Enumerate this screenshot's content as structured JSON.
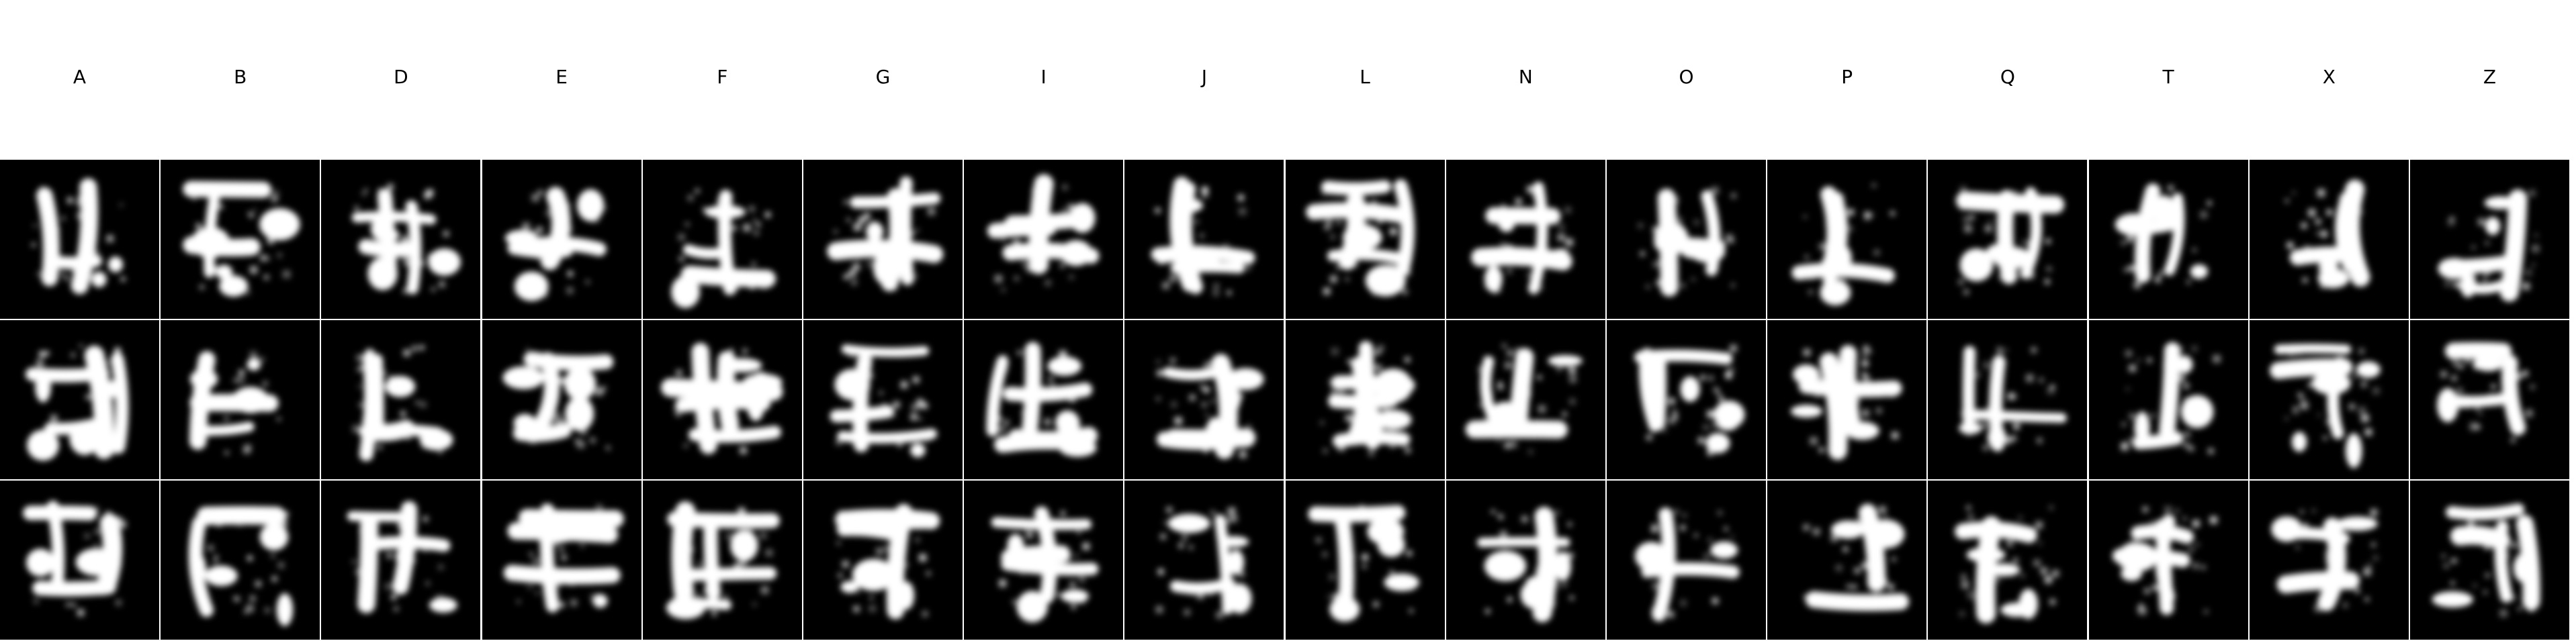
{
  "columns": [
    "A",
    "B",
    "D",
    "E",
    "F",
    "G",
    "I",
    "J",
    "L",
    "N",
    "O",
    "P",
    "Q",
    "T",
    "X",
    "Z"
  ],
  "rows": 3,
  "colors": {
    "background": "#ffffff",
    "tile": "#000000",
    "glyph": "#ffffff"
  },
  "content": "grid of generated handwritten-letter samples, white strokes on black tiles, 3 samples per column"
}
